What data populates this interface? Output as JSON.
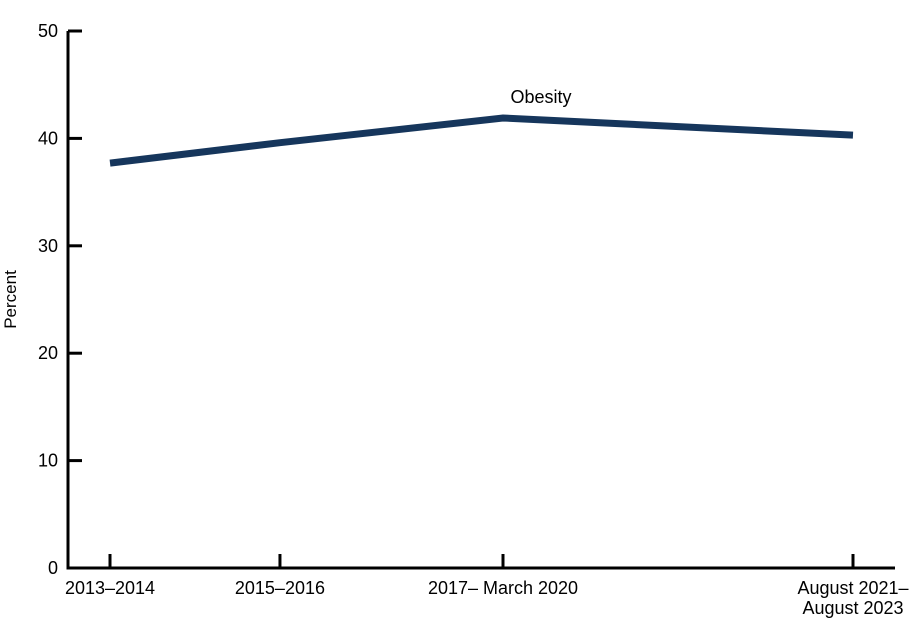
{
  "figure": {
    "ylabel": "Percent",
    "series_label": "Obesity"
  },
  "chart_data": {
    "type": "line",
    "title": "",
    "xlabel": "",
    "ylabel": "Percent",
    "ylim": [
      0,
      50
    ],
    "yticks": [
      0,
      10,
      20,
      30,
      40,
      50
    ],
    "grid": false,
    "legend_position": "inline-annotation",
    "axis_color": "#000000",
    "categories": [
      {
        "lines": [
          "2013–2014"
        ],
        "x_frac": 0.0508
      },
      {
        "lines": [
          "2015–2016"
        ],
        "x_frac": 0.2563
      },
      {
        "lines": [
          "2017– March 2020"
        ],
        "x_frac": 0.526
      },
      {
        "lines": [
          "August 2021–",
          "August 2023"
        ],
        "x_frac": 0.9492
      }
    ],
    "series": [
      {
        "name": "Obesity",
        "color": "#16365C",
        "values": [
          37.7,
          39.6,
          41.9,
          40.3
        ]
      }
    ],
    "annotation": {
      "text": "Obesity",
      "x_frac": 0.572,
      "y_value": 43.3
    }
  }
}
